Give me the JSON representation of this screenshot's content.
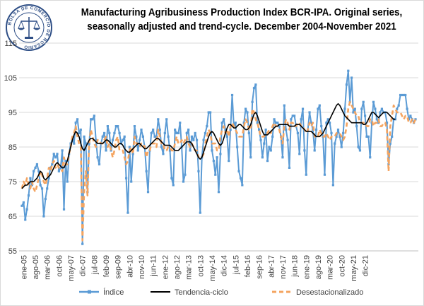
{
  "title": "Manufacturing Agribusiness Production Index BCR-IPA. Original series, seasonally adjusted and trend-cycle. December 2004-November 2021",
  "logo": {
    "text": "BOLSA DE COMERCIO DE ROSARIO",
    "icon": "scales-of-justice-seal"
  },
  "colors": {
    "indice": "#5b9bd5",
    "tendencia": "#000000",
    "desest": "#f4a460"
  },
  "chart_data": {
    "type": "line",
    "title": "Manufacturing Agribusiness Production Index BCR-IPA. Original series, seasonally adjusted and trend-cycle. December 2004-November 2021",
    "xlabel": "",
    "ylabel": "",
    "ylim": [
      55,
      115
    ],
    "yticks": [
      55,
      65,
      75,
      85,
      95,
      105,
      115
    ],
    "grid": true,
    "legend": "bottom",
    "x_start": "dic-04",
    "x_tick_labels": [
      "ene-05",
      "ago-05",
      "mar-06",
      "oct-06",
      "may-07",
      "dic-07",
      "jul-08",
      "feb-09",
      "sep-09",
      "abr-10",
      "nov-10",
      "jun-11",
      "ene-12",
      "ago-12",
      "mar-13",
      "oct-13",
      "may-14",
      "dic-14",
      "jul-15",
      "feb-16",
      "sep-16",
      "abr-17",
      "nov-17",
      "jun-18",
      "ene-19",
      "ago-19",
      "mar-20",
      "oct-20",
      "may-21",
      "dic-21"
    ],
    "series": [
      {
        "name": "Índice",
        "values": [
          68,
          69,
          64,
          67,
          71,
          76,
          74,
          78,
          79,
          80,
          78,
          74,
          73,
          65,
          70,
          73,
          76,
          79,
          80,
          83,
          82,
          83,
          78,
          79,
          84,
          67,
          81,
          75,
          83,
          86,
          87,
          86,
          92,
          93,
          89,
          90,
          57,
          88,
          86,
          72,
          86,
          93,
          93,
          94,
          87,
          82,
          80,
          86,
          88,
          89,
          84,
          91,
          89,
          84,
          87,
          89,
          91,
          91,
          89,
          86,
          87,
          88,
          76,
          66,
          85,
          75,
          83,
          91,
          88,
          84,
          87,
          90,
          88,
          85,
          78,
          72,
          84,
          89,
          90,
          88,
          88,
          93,
          90,
          85,
          83,
          89,
          93,
          88,
          84,
          76,
          74,
          90,
          89,
          89,
          92,
          85,
          75,
          77,
          89,
          90,
          84,
          88,
          87,
          89,
          87,
          78,
          66,
          82,
          87,
          89,
          91,
          95,
          95,
          84,
          81,
          77,
          82,
          72,
          83,
          92,
          93,
          90,
          88,
          81,
          90,
          100,
          91,
          92,
          85,
          78,
          76,
          74,
          92,
          96,
          95,
          89,
          82,
          98,
          102,
          103,
          92,
          90,
          87,
          82,
          86,
          90,
          81,
          85,
          84,
          88,
          93,
          92,
          92,
          91,
          88,
          82,
          97,
          90,
          87,
          79,
          93,
          94,
          94,
          91,
          89,
          83,
          93,
          96,
          84,
          77,
          90,
          95,
          92,
          90,
          84,
          90,
          96,
          97,
          91,
          88,
          77,
          92,
          93,
          92,
          89,
          74,
          86,
          88,
          90,
          88,
          85,
          89,
          96,
          103,
          107,
          98,
          105,
          95,
          96,
          91,
          85,
          84,
          96,
          98,
          94,
          88,
          88,
          82,
          92,
          98,
          96,
          93,
          92,
          95,
          96,
          95,
          95,
          92,
          80,
          86,
          88,
          93,
          93,
          96,
          97,
          100,
          100,
          100,
          100,
          96,
          93,
          94,
          93,
          92,
          93
        ]
      },
      {
        "name": "Tendencia-ciclo",
        "values": [
          73,
          73.5,
          74,
          74,
          74.5,
          75,
          75,
          75,
          75.5,
          76,
          77,
          78,
          77.5,
          76,
          75.5,
          76,
          76.5,
          77,
          78,
          79,
          80,
          80.5,
          80,
          79.5,
          79,
          79,
          80,
          81,
          83,
          85,
          87,
          88.5,
          89.5,
          89,
          88,
          86,
          84.5,
          84,
          85,
          86,
          87,
          87.5,
          87.5,
          87,
          86.5,
          86,
          86,
          86,
          86,
          86.5,
          87,
          87,
          86.5,
          86,
          85.5,
          85,
          85,
          85.5,
          86,
          86,
          85.5,
          84.5,
          84,
          83.5,
          83.5,
          84,
          84.5,
          85,
          85.5,
          86,
          86,
          85.5,
          85,
          84.5,
          84.5,
          85,
          85.5,
          86,
          86.5,
          87,
          87.5,
          87.5,
          87,
          86.5,
          86,
          85.5,
          85.5,
          85.5,
          85.5,
          85,
          84.5,
          84,
          84,
          84,
          84.5,
          85,
          85.5,
          86,
          86.5,
          86.5,
          86.5,
          86,
          85,
          84,
          83,
          82,
          81.5,
          82,
          83.5,
          85,
          86.5,
          88,
          89,
          89.5,
          89,
          88,
          87,
          86,
          85.5,
          86,
          87.5,
          89,
          90.5,
          91.5,
          91.5,
          91,
          90.5,
          90.5,
          91,
          91.5,
          91.5,
          91,
          90.5,
          90,
          90,
          90.5,
          91.5,
          93,
          94.5,
          95,
          94,
          92.5,
          91,
          89.5,
          88.5,
          88.5,
          88.5,
          89,
          89.5,
          90,
          90.5,
          91,
          91,
          91.5,
          91.5,
          91.5,
          91.5,
          91.5,
          91.5,
          91,
          91,
          91,
          91,
          91.5,
          91.5,
          91.5,
          91,
          90.5,
          90,
          89.5,
          89.5,
          89.5,
          89.5,
          89,
          88.5,
          88,
          88,
          88,
          88.5,
          89,
          90,
          91,
          92,
          93,
          94,
          95,
          96,
          97,
          97.5,
          97,
          96,
          95,
          94,
          93.5,
          93,
          92.5,
          92,
          92,
          92,
          92,
          92,
          92,
          92,
          91.5,
          91.5,
          92,
          93,
          94,
          95,
          95,
          94.5,
          94,
          93.5,
          94,
          94.5,
          95,
          95,
          95,
          94.5,
          94,
          93.5,
          93,
          93
        ]
      },
      {
        "name": "Desestacionalizado",
        "values": [
          73,
          75,
          74,
          76,
          74,
          73,
          75,
          73,
          72,
          74,
          76,
          78,
          77,
          75,
          74,
          76,
          79,
          78,
          80,
          81,
          79,
          80,
          79,
          79,
          78,
          82,
          80,
          80,
          83,
          85,
          88,
          89,
          91,
          88,
          86,
          85,
          58,
          72,
          78,
          71,
          86,
          90,
          88,
          86,
          85,
          87,
          87,
          86,
          86,
          87,
          88,
          85,
          86,
          84,
          82,
          84,
          87,
          88,
          84,
          84,
          84,
          82,
          80,
          81,
          84,
          85,
          83,
          88,
          86,
          86,
          85,
          86,
          86,
          85,
          82,
          84,
          84,
          86,
          86,
          86,
          85,
          90,
          88,
          86,
          86,
          84,
          84,
          85,
          85,
          84,
          84,
          86,
          88,
          86,
          86,
          87,
          86,
          87,
          88,
          86,
          85,
          86,
          85,
          84,
          84,
          82,
          82,
          82,
          83,
          86,
          88,
          90,
          89,
          86,
          86,
          86,
          84,
          84,
          88,
          90,
          91,
          89,
          90,
          88,
          91,
          92,
          91,
          90,
          89,
          88,
          88,
          88,
          91,
          93,
          92,
          90,
          90,
          96,
          95,
          93,
          92,
          90,
          88,
          88,
          88,
          89,
          89,
          90,
          89,
          91,
          92,
          91,
          91,
          90,
          88,
          86,
          91,
          93,
          92,
          90,
          92,
          92,
          91,
          91,
          92,
          92,
          91,
          91,
          90,
          89,
          90,
          92,
          91,
          92,
          88,
          88,
          88,
          90,
          89,
          88,
          88,
          89,
          88,
          87,
          88,
          88,
          88,
          89,
          89,
          89,
          88,
          87,
          88,
          91,
          96,
          98,
          97,
          96,
          95,
          94,
          94,
          92,
          92,
          92,
          92,
          91,
          91,
          93,
          93,
          91,
          92,
          92,
          93,
          91,
          91,
          92,
          92,
          90,
          78,
          91,
          94,
          97,
          96,
          95,
          95,
          95,
          94,
          93,
          94,
          94,
          92,
          92,
          93,
          92,
          93
        ]
      }
    ]
  }
}
